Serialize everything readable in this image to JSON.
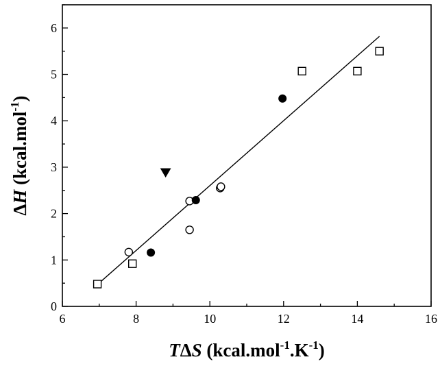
{
  "chart_data": {
    "type": "scatter",
    "title": "",
    "xlabel": {
      "italic": "T",
      "delta": "Δ",
      "italic2": "S",
      "rest": " (kcal.mol",
      "sup1": "-1",
      "mid": ".K",
      "sup2": "-1",
      "end": ")"
    },
    "ylabel": {
      "delta": "Δ",
      "italic": "H",
      "rest": " (kcal.mol",
      "sup": "-1",
      "end": ")"
    },
    "xlim": [
      6,
      16
    ],
    "ylim": [
      0,
      6.5
    ],
    "xticks": [
      "6",
      "8",
      "10",
      "12",
      "14",
      "16"
    ],
    "yticks": [
      "0",
      "1",
      "2",
      "3",
      "4",
      "5",
      "6"
    ],
    "grid": false,
    "series": [
      {
        "marker": "open-square",
        "x": [
          6.95,
          7.9,
          12.5,
          14.0,
          14.6
        ],
        "y": [
          0.48,
          0.92,
          5.07,
          5.07,
          5.5
        ]
      },
      {
        "marker": "open-circle",
        "x": [
          7.8,
          9.45,
          9.45,
          10.28,
          10.3
        ],
        "y": [
          1.17,
          1.65,
          2.27,
          2.55,
          2.58
        ]
      },
      {
        "marker": "filled-circle",
        "x": [
          8.4,
          9.62,
          11.97
        ],
        "y": [
          1.16,
          2.29,
          4.48
        ]
      },
      {
        "marker": "filled-triangle-down",
        "x": [
          8.8
        ],
        "y": [
          2.88
        ]
      }
    ],
    "fit_line": {
      "x": [
        6.95,
        14.6
      ],
      "y": [
        0.47,
        5.82
      ]
    }
  }
}
